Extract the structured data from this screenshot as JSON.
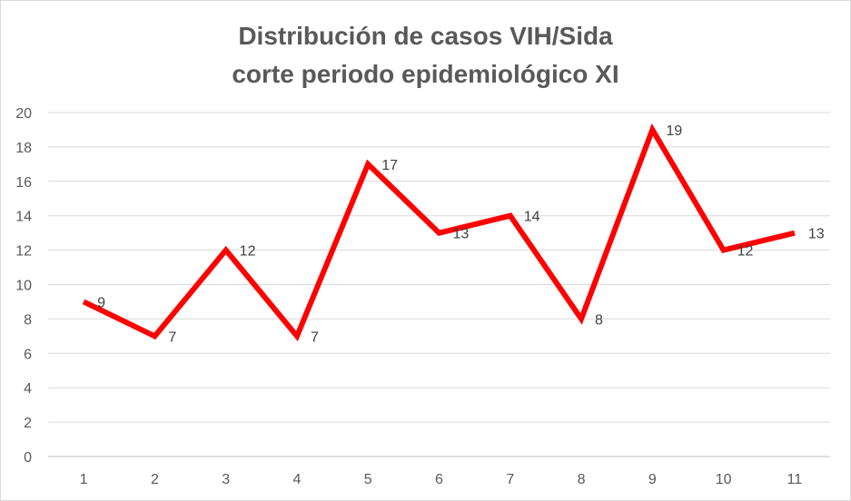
{
  "chart_data": {
    "type": "line",
    "title_lines": [
      "Distribución de casos VIH/Sida",
      "corte periodo epidemiológico XI"
    ],
    "categories": [
      "1",
      "2",
      "3",
      "4",
      "5",
      "6",
      "7",
      "8",
      "9",
      "10",
      "11"
    ],
    "series": [
      {
        "values": [
          9,
          7,
          12,
          7,
          17,
          13,
          14,
          8,
          19,
          12,
          13
        ],
        "color": "#ff0000"
      }
    ],
    "y_ticks": [
      "0",
      "2",
      "4",
      "6",
      "8",
      "10",
      "12",
      "14",
      "16",
      "18",
      "20"
    ],
    "ylim": [
      0,
      20
    ],
    "y_step": 2,
    "grid": true,
    "legend": "none",
    "data_labels": true,
    "xlabel": "",
    "ylabel": ""
  }
}
